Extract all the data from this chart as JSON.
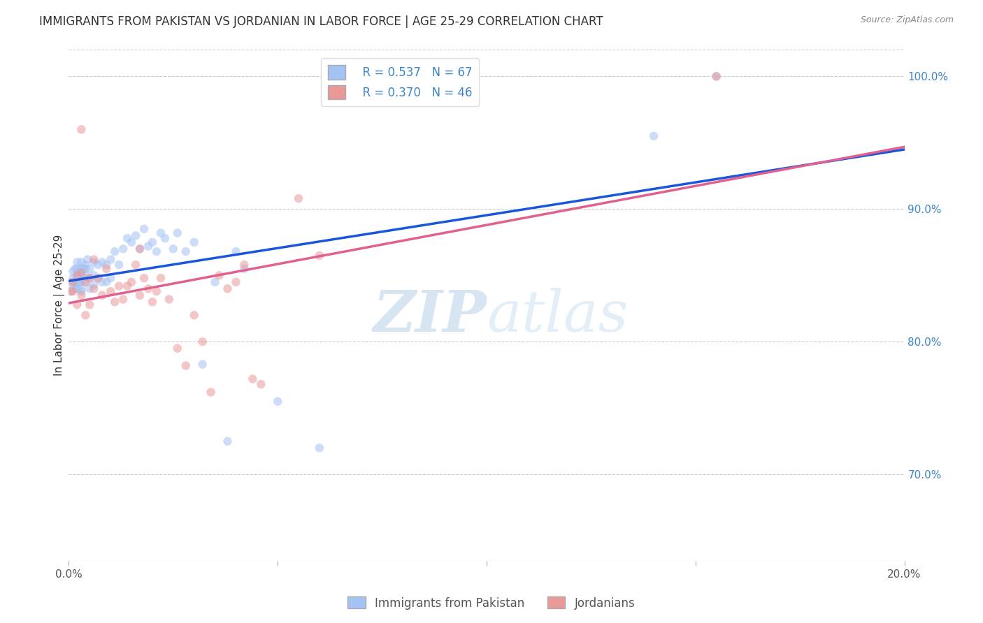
{
  "title": "IMMIGRANTS FROM PAKISTAN VS JORDANIAN IN LABOR FORCE | AGE 25-29 CORRELATION CHART",
  "source": "Source: ZipAtlas.com",
  "ylabel": "In Labor Force | Age 25-29",
  "xlim": [
    0.0,
    0.2
  ],
  "ylim": [
    0.635,
    1.02
  ],
  "xticks": [
    0.0,
    0.05,
    0.1,
    0.15,
    0.2
  ],
  "xticklabels": [
    "0.0%",
    "",
    "",
    "",
    "20.0%"
  ],
  "yticks_right": [
    0.7,
    0.8,
    0.9,
    1.0
  ],
  "yticklabels_right": [
    "70.0%",
    "80.0%",
    "90.0%",
    "100.0%"
  ],
  "blue_color": "#a4c2f4",
  "pink_color": "#ea9999",
  "blue_line_color": "#1a56db",
  "pink_line_color": "#e06090",
  "legend_R_blue": "R = 0.537",
  "legend_N_blue": "N = 67",
  "legend_R_pink": "R = 0.370",
  "legend_N_pink": "N = 46",
  "blue_x": [
    0.0005,
    0.001,
    0.001,
    0.001,
    0.001,
    0.0015,
    0.0015,
    0.002,
    0.002,
    0.002,
    0.002,
    0.002,
    0.0025,
    0.0025,
    0.003,
    0.003,
    0.003,
    0.003,
    0.003,
    0.003,
    0.0035,
    0.0035,
    0.004,
    0.004,
    0.004,
    0.004,
    0.0045,
    0.005,
    0.005,
    0.005,
    0.006,
    0.006,
    0.006,
    0.007,
    0.007,
    0.008,
    0.008,
    0.009,
    0.009,
    0.01,
    0.01,
    0.011,
    0.012,
    0.013,
    0.014,
    0.015,
    0.016,
    0.017,
    0.018,
    0.019,
    0.02,
    0.021,
    0.022,
    0.023,
    0.025,
    0.026,
    0.028,
    0.03,
    0.032,
    0.035,
    0.038,
    0.04,
    0.042,
    0.05,
    0.06,
    0.14,
    0.155
  ],
  "blue_y": [
    0.838,
    0.843,
    0.845,
    0.848,
    0.853,
    0.84,
    0.855,
    0.84,
    0.845,
    0.85,
    0.855,
    0.86,
    0.845,
    0.852,
    0.838,
    0.84,
    0.845,
    0.85,
    0.855,
    0.86,
    0.848,
    0.855,
    0.845,
    0.85,
    0.855,
    0.858,
    0.862,
    0.84,
    0.848,
    0.855,
    0.843,
    0.85,
    0.86,
    0.848,
    0.858,
    0.845,
    0.86,
    0.845,
    0.858,
    0.848,
    0.862,
    0.868,
    0.858,
    0.87,
    0.878,
    0.875,
    0.88,
    0.87,
    0.885,
    0.872,
    0.875,
    0.868,
    0.882,
    0.878,
    0.87,
    0.882,
    0.868,
    0.875,
    0.783,
    0.845,
    0.725,
    0.868,
    0.855,
    0.755,
    0.72,
    0.955,
    1.0
  ],
  "pink_x": [
    0.0005,
    0.001,
    0.001,
    0.002,
    0.002,
    0.003,
    0.003,
    0.004,
    0.004,
    0.005,
    0.005,
    0.006,
    0.006,
    0.007,
    0.008,
    0.009,
    0.01,
    0.011,
    0.012,
    0.013,
    0.014,
    0.015,
    0.016,
    0.017,
    0.018,
    0.019,
    0.02,
    0.021,
    0.022,
    0.024,
    0.026,
    0.028,
    0.03,
    0.032,
    0.034,
    0.036,
    0.038,
    0.04,
    0.042,
    0.044,
    0.046,
    0.055,
    0.06,
    0.155,
    0.017,
    0.003
  ],
  "pink_y": [
    0.838,
    0.838,
    0.845,
    0.828,
    0.85,
    0.835,
    0.852,
    0.82,
    0.845,
    0.828,
    0.848,
    0.84,
    0.862,
    0.848,
    0.835,
    0.855,
    0.838,
    0.83,
    0.842,
    0.832,
    0.842,
    0.845,
    0.858,
    0.835,
    0.848,
    0.84,
    0.83,
    0.838,
    0.848,
    0.832,
    0.795,
    0.782,
    0.82,
    0.8,
    0.762,
    0.85,
    0.84,
    0.845,
    0.858,
    0.772,
    0.768,
    0.908,
    0.865,
    1.0,
    0.87,
    0.96
  ],
  "title_fontsize": 12,
  "axis_label_fontsize": 11,
  "tick_fontsize": 11,
  "legend_fontsize": 12,
  "marker_size": 9,
  "marker_alpha": 0.55,
  "grid_color": "#cccccc",
  "background_color": "#ffffff",
  "right_tick_color": "#3d85c8",
  "watermark_color": "#d0e4f7",
  "watermark_zip_color": "#b0cce8",
  "watermark_atlas_color": "#c8dff0"
}
